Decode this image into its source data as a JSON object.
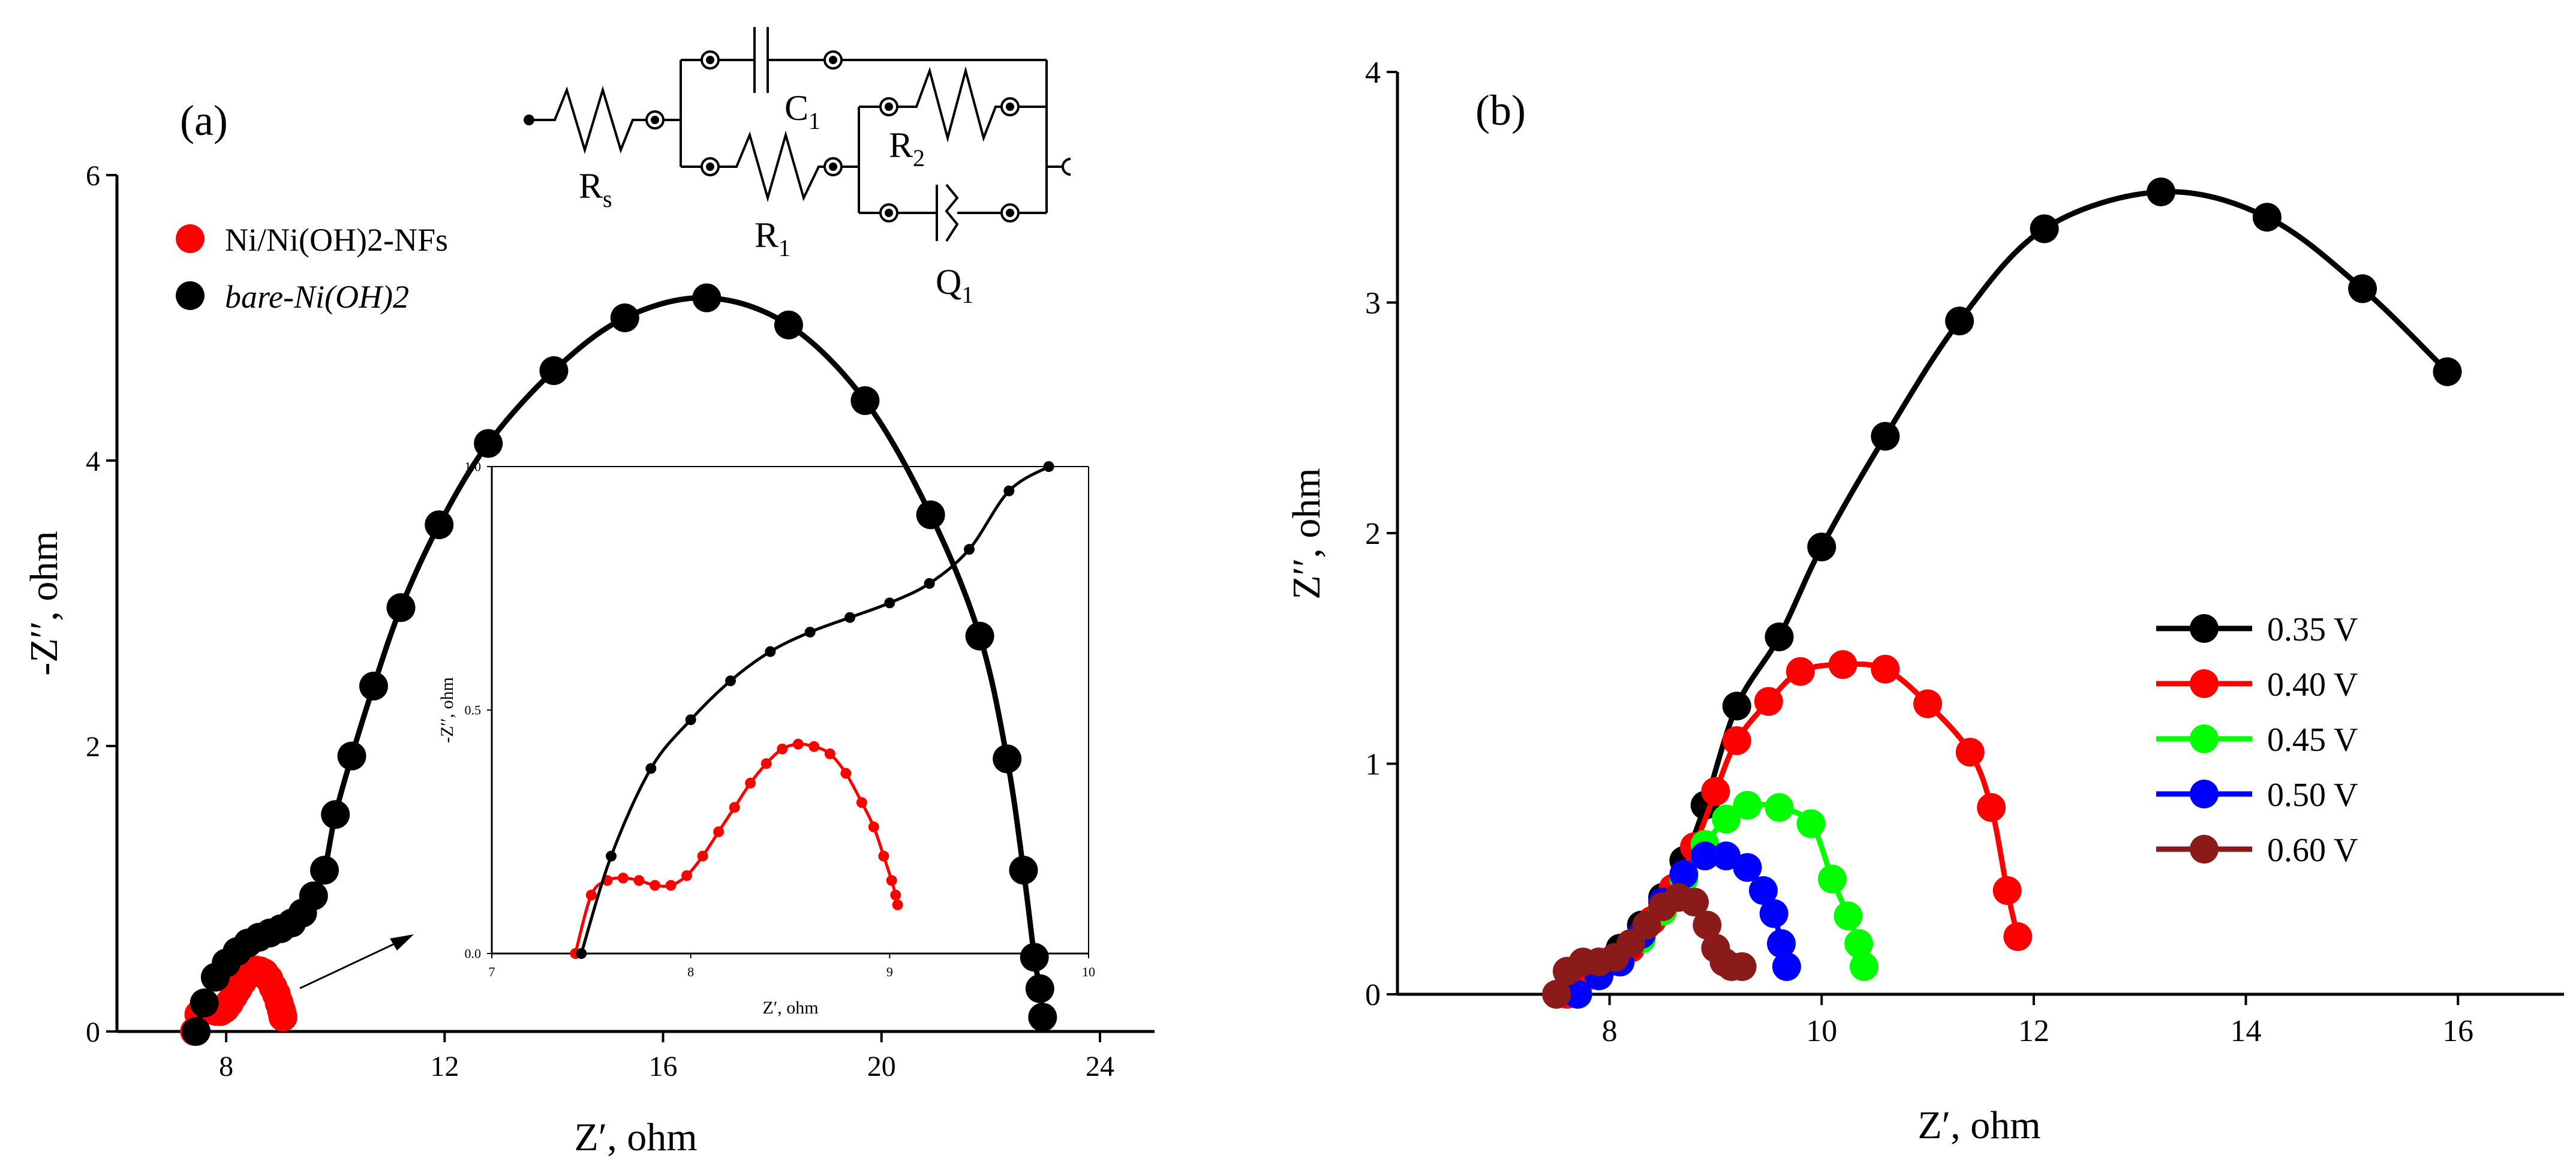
{
  "chart_data": [
    {
      "panel_label": "(a)",
      "type": "scatter",
      "xlabel": "Z′, ohm",
      "ylabel": "-Z′′, ohm",
      "xlim": [
        6,
        25
      ],
      "ylim": [
        0,
        6
      ],
      "xticks": [
        "8",
        "12",
        "16",
        "20",
        "24"
      ],
      "yticks": [
        "0",
        "2",
        "4",
        "6"
      ],
      "legend": [
        "Ni/Ni(OH)2-NFs",
        "bare-Ni(OH)2"
      ],
      "circuit": {
        "components": [
          "R",
          "s",
          "C",
          "1",
          "R",
          "1",
          "R",
          "2",
          "Q",
          "1"
        ]
      },
      "series": [
        {
          "name": "Ni/Ni(OH)2-NFs",
          "color": "#ff0000",
          "x": [
            7.42,
            7.5,
            7.58,
            7.66,
            7.74,
            7.82,
            7.9,
            7.98,
            8.06,
            8.14,
            8.22,
            8.3,
            8.38,
            8.46,
            8.54,
            8.62,
            8.7,
            8.78,
            8.86,
            8.92,
            8.97,
            9.01,
            9.03,
            9.04
          ],
          "y": [
            0.0,
            0.12,
            0.15,
            0.155,
            0.15,
            0.14,
            0.14,
            0.16,
            0.2,
            0.25,
            0.3,
            0.35,
            0.39,
            0.42,
            0.43,
            0.425,
            0.41,
            0.37,
            0.31,
            0.26,
            0.2,
            0.15,
            0.12,
            0.1
          ]
        },
        {
          "name": "bare-Ni(OH)2",
          "color": "#000000",
          "x": [
            7.45,
            7.6,
            7.8,
            8.0,
            8.2,
            8.4,
            8.6,
            8.8,
            9.0,
            9.2,
            9.4,
            9.6,
            9.8,
            10.0,
            10.3,
            10.7,
            11.2,
            11.9,
            12.8,
            14.0,
            15.3,
            16.8,
            18.3,
            19.7,
            20.9,
            21.8,
            22.3,
            22.6,
            22.8,
            22.9,
            22.95
          ],
          "y": [
            0.0,
            0.2,
            0.38,
            0.48,
            0.56,
            0.62,
            0.66,
            0.69,
            0.72,
            0.76,
            0.83,
            0.95,
            1.13,
            1.52,
            1.93,
            2.42,
            2.97,
            3.55,
            4.12,
            4.63,
            5.0,
            5.14,
            4.95,
            4.42,
            3.62,
            2.77,
            1.91,
            1.13,
            0.52,
            0.3,
            0.1
          ]
        }
      ],
      "inset": {
        "xlabel": "Z′, ohm",
        "ylabel": "-Z′′, ohm",
        "xlim": [
          7,
          10
        ],
        "ylim": [
          0,
          1.0
        ],
        "xticks": [
          "7",
          "8",
          "9",
          "10"
        ],
        "yticks": [
          "0.0",
          "0.5",
          "1.0"
        ],
        "series": [
          {
            "name": "Ni/Ni(OH)2-NFs",
            "color": "#ff0000",
            "x": [
              7.42,
              7.5,
              7.58,
              7.66,
              7.74,
              7.82,
              7.9,
              7.98,
              8.06,
              8.14,
              8.22,
              8.3,
              8.38,
              8.46,
              8.54,
              8.62,
              8.7,
              8.78,
              8.86,
              8.92,
              8.97,
              9.01,
              9.03,
              9.04
            ],
            "y": [
              0.0,
              0.12,
              0.15,
              0.155,
              0.15,
              0.14,
              0.14,
              0.16,
              0.2,
              0.25,
              0.3,
              0.35,
              0.39,
              0.42,
              0.43,
              0.425,
              0.41,
              0.37,
              0.31,
              0.26,
              0.2,
              0.15,
              0.12,
              0.1
            ]
          },
          {
            "name": "bare-Ni(OH)2",
            "color": "#000000",
            "x": [
              7.45,
              7.6,
              7.8,
              8.0,
              8.2,
              8.4,
              8.6,
              8.8,
              9.0,
              9.2,
              9.4,
              9.6,
              9.8
            ],
            "y": [
              0.0,
              0.2,
              0.38,
              0.48,
              0.56,
              0.62,
              0.66,
              0.69,
              0.72,
              0.76,
              0.83,
              0.95,
              1.0
            ]
          }
        ]
      }
    },
    {
      "panel_label": "(b)",
      "type": "scatter",
      "xlabel": "Z′, ohm",
      "ylabel": "Z′′, ohm",
      "xlim": [
        6,
        17
      ],
      "ylim": [
        0,
        4
      ],
      "xticks": [
        "8",
        "10",
        "12",
        "14",
        "16"
      ],
      "yticks": [
        "0",
        "1",
        "2",
        "3",
        "4"
      ],
      "series": [
        {
          "name": "0.35 V",
          "color": "#000000",
          "x": [
            7.5,
            7.7,
            7.9,
            8.1,
            8.3,
            8.5,
            8.7,
            8.9,
            9.2,
            9.6,
            10.0,
            10.6,
            11.3,
            12.1,
            13.2,
            14.2,
            15.1,
            15.9
          ],
          "y": [
            0.0,
            0.08,
            0.14,
            0.2,
            0.3,
            0.42,
            0.58,
            0.82,
            1.25,
            1.55,
            1.94,
            2.42,
            2.92,
            3.32,
            3.48,
            3.37,
            3.06,
            2.7
          ]
        },
        {
          "name": "0.40 V",
          "color": "#ff0000",
          "x": [
            7.6,
            7.8,
            8.0,
            8.2,
            8.4,
            8.6,
            8.8,
            9.0,
            9.2,
            9.5,
            9.8,
            10.2,
            10.6,
            11.0,
            11.4,
            11.6,
            11.75,
            11.85
          ],
          "y": [
            0.0,
            0.08,
            0.14,
            0.2,
            0.32,
            0.46,
            0.64,
            0.88,
            1.1,
            1.27,
            1.4,
            1.43,
            1.41,
            1.26,
            1.05,
            0.81,
            0.45,
            0.25
          ]
        },
        {
          "name": "0.45 V",
          "color": "#00ff00",
          "x": [
            7.7,
            7.9,
            8.1,
            8.3,
            8.5,
            8.7,
            8.9,
            9.1,
            9.3,
            9.6,
            9.9,
            10.1,
            10.25,
            10.35,
            10.4
          ],
          "y": [
            0.0,
            0.08,
            0.14,
            0.24,
            0.36,
            0.5,
            0.65,
            0.76,
            0.82,
            0.81,
            0.74,
            0.5,
            0.34,
            0.22,
            0.12
          ]
        },
        {
          "name": "0.50 V",
          "color": "#0000ff",
          "x": [
            7.7,
            7.9,
            8.1,
            8.3,
            8.5,
            8.7,
            8.9,
            9.1,
            9.3,
            9.45,
            9.55,
            9.62,
            9.67
          ],
          "y": [
            0.0,
            0.08,
            0.14,
            0.26,
            0.4,
            0.52,
            0.6,
            0.6,
            0.55,
            0.45,
            0.35,
            0.22,
            0.12
          ]
        },
        {
          "name": "0.60 V",
          "color": "#8b1a1a",
          "x": [
            7.5,
            7.6,
            7.75,
            7.9,
            8.05,
            8.2,
            8.35,
            8.5,
            8.65,
            8.8,
            8.92,
            9.0,
            9.08,
            9.15,
            9.25
          ],
          "y": [
            0.0,
            0.1,
            0.14,
            0.14,
            0.16,
            0.22,
            0.3,
            0.38,
            0.42,
            0.4,
            0.3,
            0.2,
            0.14,
            0.12,
            0.12
          ]
        }
      ]
    }
  ]
}
